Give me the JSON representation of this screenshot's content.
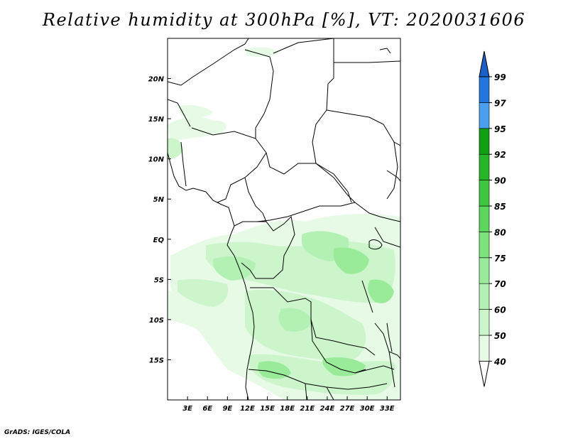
{
  "title": "Relative humidity at 300hPa [%], VT: 2020031606",
  "credit": "GrADS: IGES/COLA",
  "map": {
    "lon_range": [
      0,
      35
    ],
    "lat_range": [
      -20,
      25
    ],
    "x_ticks": [
      {
        "lon": 3,
        "label": "3E"
      },
      {
        "lon": 6,
        "label": "6E"
      },
      {
        "lon": 9,
        "label": "9E"
      },
      {
        "lon": 12,
        "label": "12E"
      },
      {
        "lon": 15,
        "label": "15E"
      },
      {
        "lon": 18,
        "label": "18E"
      },
      {
        "lon": 21,
        "label": "21E"
      },
      {
        "lon": 24,
        "label": "24E"
      },
      {
        "lon": 27,
        "label": "27E"
      },
      {
        "lon": 30,
        "label": "30E"
      },
      {
        "lon": 33,
        "label": "33E"
      }
    ],
    "y_ticks": [
      {
        "lat": 20,
        "label": "20N"
      },
      {
        "lat": 15,
        "label": "15N"
      },
      {
        "lat": 10,
        "label": "10N"
      },
      {
        "lat": 5,
        "label": "5N"
      },
      {
        "lat": 0,
        "label": "EQ"
      },
      {
        "lat": -5,
        "label": "5S"
      },
      {
        "lat": -10,
        "label": "10S"
      },
      {
        "lat": -15,
        "label": "15S"
      }
    ]
  },
  "colorbar": {
    "levels": [
      "40",
      "50",
      "60",
      "70",
      "75",
      "80",
      "85",
      "90",
      "92",
      "95",
      "97",
      "99"
    ],
    "colors": [
      "#ffffff",
      "#e6fae6",
      "#ccf5cc",
      "#b3f0b3",
      "#99eb99",
      "#7de37d",
      "#5cd65c",
      "#3ec63e",
      "#26b526",
      "#11a011",
      "#4a9fee",
      "#2276dd",
      "#1c5fc8"
    ]
  }
}
